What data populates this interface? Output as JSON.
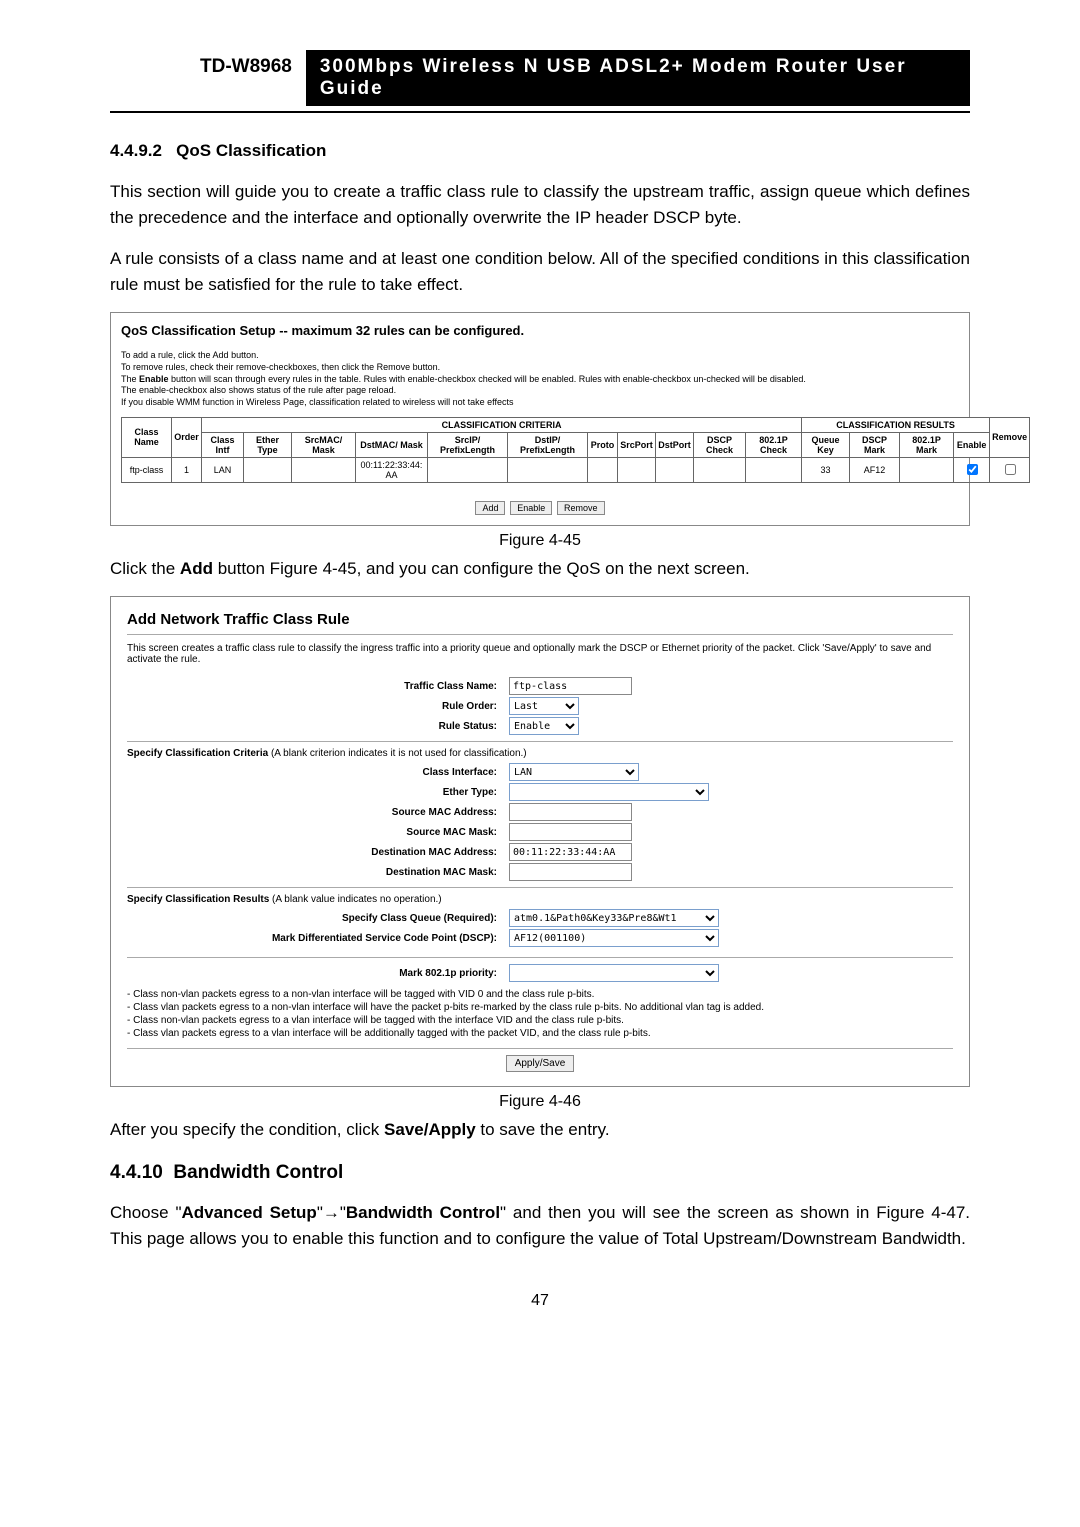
{
  "header": {
    "model": "TD-W8968",
    "title": "300Mbps Wireless N USB ADSL2+ Modem Router User Guide"
  },
  "sec1": {
    "num": "4.4.9.2",
    "title": "QoS Classification",
    "p1": "This section will guide you to create a traffic class rule to classify the upstream traffic, assign queue which defines the precedence and the interface and optionally overwrite the IP header DSCP byte.",
    "p2": "A rule consists of a class name and at least one condition below. All of the specified conditions in this classification rule must be satisfied for the rule to take effect."
  },
  "fig1": {
    "title": "QoS Classification Setup -- maximum 32 rules can be configured.",
    "notes": [
      "To add a rule, click the Add button.",
      "To remove rules, check their remove-checkboxes, then click the Remove button.",
      "The Enable button will scan through every rules in the table. Rules with enable-checkbox checked will be enabled. Rules with enable-checkbox un-checked will be disabled.",
      "The enable-checkbox also shows status of the rule after page reload.",
      "If you disable WMM function in Wireless Page, classification related to wireless will not take effects"
    ],
    "th_left": "CLASSIFICATION CRITERIA",
    "th_right": "CLASSIFICATION RESULTS",
    "cols": [
      "Class Name",
      "Order",
      "Class Intf",
      "Ether Type",
      "SrcMAC/ Mask",
      "DstMAC/ Mask",
      "SrcIP/ PrefixLength",
      "DstIP/ PrefixLength",
      "Proto",
      "SrcPort",
      "DstPort",
      "DSCP Check",
      "802.1P Check",
      "Queue Key",
      "DSCP Mark",
      "802.1P Mark",
      "Enable",
      "Remove"
    ],
    "row": {
      "class_name": "ftp-class",
      "order": "1",
      "class_intf": "LAN",
      "ether_type": "",
      "srcmac": "",
      "dstmac": "00:11:22:33:44:AA",
      "srcip": "",
      "dstip": "",
      "proto": "",
      "srcport": "",
      "dstport": "",
      "dscp_check": "",
      "p8021_check": "",
      "queue_key": "33",
      "dscp_mark": "AF12",
      "p8021_mark": ""
    },
    "btns": [
      "Add",
      "Enable",
      "Remove"
    ],
    "caption": "Figure 4-45"
  },
  "between": "Click the Add button Figure 4-45, and you can configure the QoS on the next screen.",
  "fig2": {
    "title": "Add Network Traffic Class Rule",
    "desc": "This screen creates a traffic class rule to classify the ingress traffic into a priority queue and optionally mark the DSCP or Ethernet priority of the packet. Click 'Save/Apply' to save and activate the rule.",
    "labels": {
      "traffic_class_name": "Traffic Class Name:",
      "rule_order": "Rule Order:",
      "rule_status": "Rule Status:",
      "class_interface": "Class Interface:",
      "ether_type": "Ether Type:",
      "src_mac": "Source MAC Address:",
      "src_mac_mask": "Source MAC Mask:",
      "dst_mac": "Destination MAC Address:",
      "dst_mac_mask": "Destination MAC Mask:",
      "spec_queue": "Specify Class Queue (Required):",
      "mark_dscp": "Mark Differentiated Service Code Point (DSCP):",
      "mark_8021p": "Mark 802.1p priority:"
    },
    "values": {
      "traffic_class_name": "ftp-class",
      "rule_order": "Last",
      "rule_status": "Enable",
      "class_interface": "LAN",
      "ether_type": "",
      "src_mac": "",
      "src_mac_mask": "",
      "dst_mac": "00:11:22:33:44:AA",
      "dst_mac_mask": "",
      "spec_queue": "atm0.1&Path0&Key33&Pre8&Wt1",
      "mark_dscp": "AF12(001100)",
      "mark_8021p": ""
    },
    "sub1": "Specify Classification Criteria",
    "sub1_paren": " (A blank criterion indicates it is not used for classification.)",
    "sub2": "Specify Classification Results",
    "sub2_paren": " (A blank value indicates no operation.)",
    "note": "- Class non-vlan packets egress to a non-vlan interface will be tagged with VID 0 and the class rule p-bits.\n- Class vlan packets egress to a non-vlan interface will have the packet p-bits re-marked by the class rule p-bits. No additional vlan tag is added.\n- Class non-vlan packets egress to a vlan interface will be tagged with the interface VID and the class rule p-bits.\n- Class vlan packets egress to a vlan interface will be additionally tagged with the packet VID, and the class rule p-bits.",
    "apply": "Apply/Save",
    "caption": "Figure 4-46"
  },
  "after": "After you specify the condition, click Save/Apply to save the entry.",
  "sec2": {
    "num": "4.4.10",
    "title": "Bandwidth Control",
    "p1a": "Choose \"",
    "p1b": "Advanced Setup",
    "p1c": "\"→\"",
    "p1d": "Bandwidth Control",
    "p1e": "\" and then you will see the screen as shown in Figure 4-47. This page allows you to enable this function and to configure the value of Total Upstream/Downstream Bandwidth."
  },
  "page_num": "47"
}
